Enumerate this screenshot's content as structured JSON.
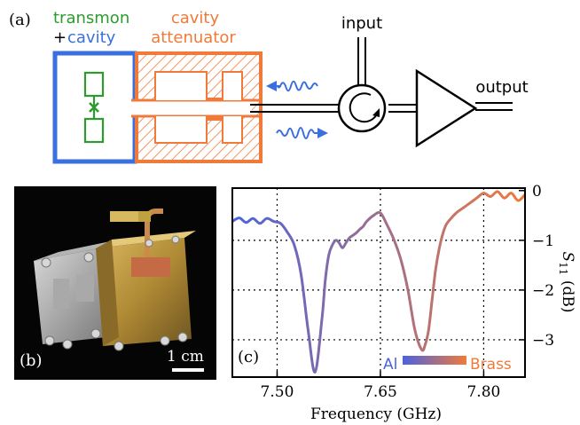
{
  "panel_a": {
    "label": "(a)",
    "transmon_label": "transmon",
    "plus_label": "+",
    "cavity_label": "cavity",
    "attenuator_line1": "cavity",
    "attenuator_line2": "attenuator",
    "input_label": "input",
    "output_label": "output",
    "colors": {
      "blue": "#3a6fe0",
      "green": "#2e9b2e",
      "orange": "#f07a3a",
      "black": "#000000"
    }
  },
  "panel_b": {
    "label": "(b)",
    "scale_label": "1 cm"
  },
  "panel_c": {
    "label": "(c)",
    "legend_left": "Al",
    "legend_right": "Brass",
    "chart_data": {
      "type": "line",
      "xlabel": "Frequency (GHz)",
      "ylabel_main": "S",
      "ylabel_sub": "11",
      "ylabel_unit": " (dB)",
      "xlim": [
        7.435,
        7.86
      ],
      "ylim": [
        -3.75,
        0.05
      ],
      "xticks": [
        7.5,
        7.65,
        7.8
      ],
      "xtick_labels": [
        "7.50",
        "7.65",
        "7.80"
      ],
      "yticks": [
        0,
        -1,
        -2,
        -3
      ],
      "ytick_labels": [
        "0",
        "−1",
        "−2",
        "−3"
      ],
      "grid": true,
      "gradient_colors": [
        "#4a63e0",
        "#f07a3a"
      ],
      "series": [
        {
          "x": [
            7.435,
            7.445,
            7.455,
            7.465,
            7.475,
            7.485,
            7.495,
            7.505,
            7.515,
            7.525,
            7.535,
            7.545,
            7.555,
            7.565,
            7.57,
            7.575,
            7.58,
            7.585,
            7.59,
            7.595,
            7.6,
            7.605,
            7.61,
            7.615,
            7.62,
            7.625,
            7.63,
            7.64,
            7.65,
            7.66,
            7.67,
            7.68,
            7.69,
            7.7,
            7.71,
            7.715,
            7.72,
            7.725,
            7.73,
            7.735,
            7.74,
            7.745,
            7.75,
            7.76,
            7.77,
            7.78,
            7.79,
            7.8,
            7.81,
            7.82,
            7.83,
            7.84,
            7.85,
            7.86
          ],
          "y": [
            -0.62,
            -0.55,
            -0.64,
            -0.56,
            -0.66,
            -0.56,
            -0.62,
            -0.66,
            -0.84,
            -1.1,
            -1.7,
            -2.8,
            -3.65,
            -2.6,
            -1.8,
            -1.3,
            -1.1,
            -1.0,
            -1.05,
            -1.15,
            -1.05,
            -0.95,
            -0.9,
            -0.85,
            -0.78,
            -0.72,
            -0.62,
            -0.5,
            -0.45,
            -0.7,
            -1.0,
            -1.4,
            -2.0,
            -2.8,
            -3.2,
            -3.1,
            -2.8,
            -2.2,
            -1.6,
            -1.2,
            -0.9,
            -0.7,
            -0.6,
            -0.45,
            -0.35,
            -0.25,
            -0.15,
            -0.05,
            -0.12,
            -0.02,
            -0.15,
            -0.05,
            -0.2,
            -0.08
          ]
        }
      ]
    }
  }
}
